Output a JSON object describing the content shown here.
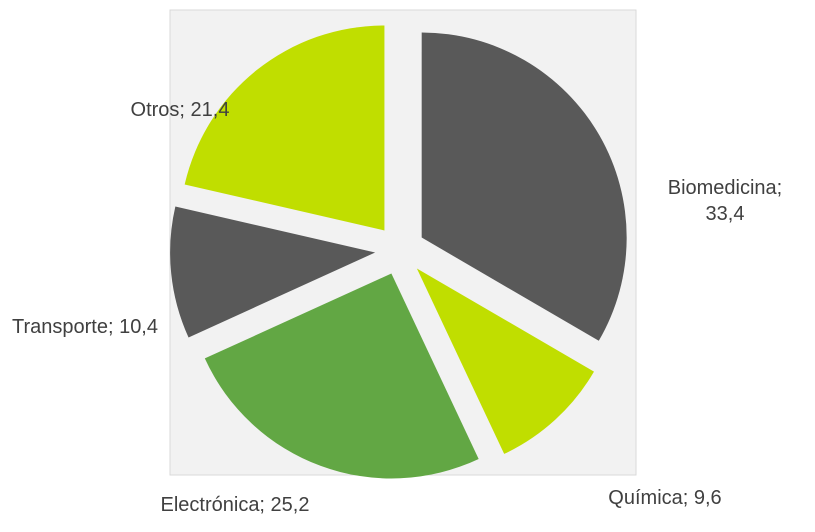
{
  "chart_data": {
    "type": "pie",
    "values": [
      33.4,
      9.6,
      25.2,
      10.4,
      21.4
    ],
    "value_labels": [
      "Biomedicina; 33,4",
      "Química; 9,6",
      "Electrónica; 25,2",
      "Transporte; 10,4",
      "Otros; 21,4"
    ],
    "colors": [
      "#595959",
      "#c0de00",
      "#62a744",
      "#595959",
      "#c0de00"
    ]
  }
}
